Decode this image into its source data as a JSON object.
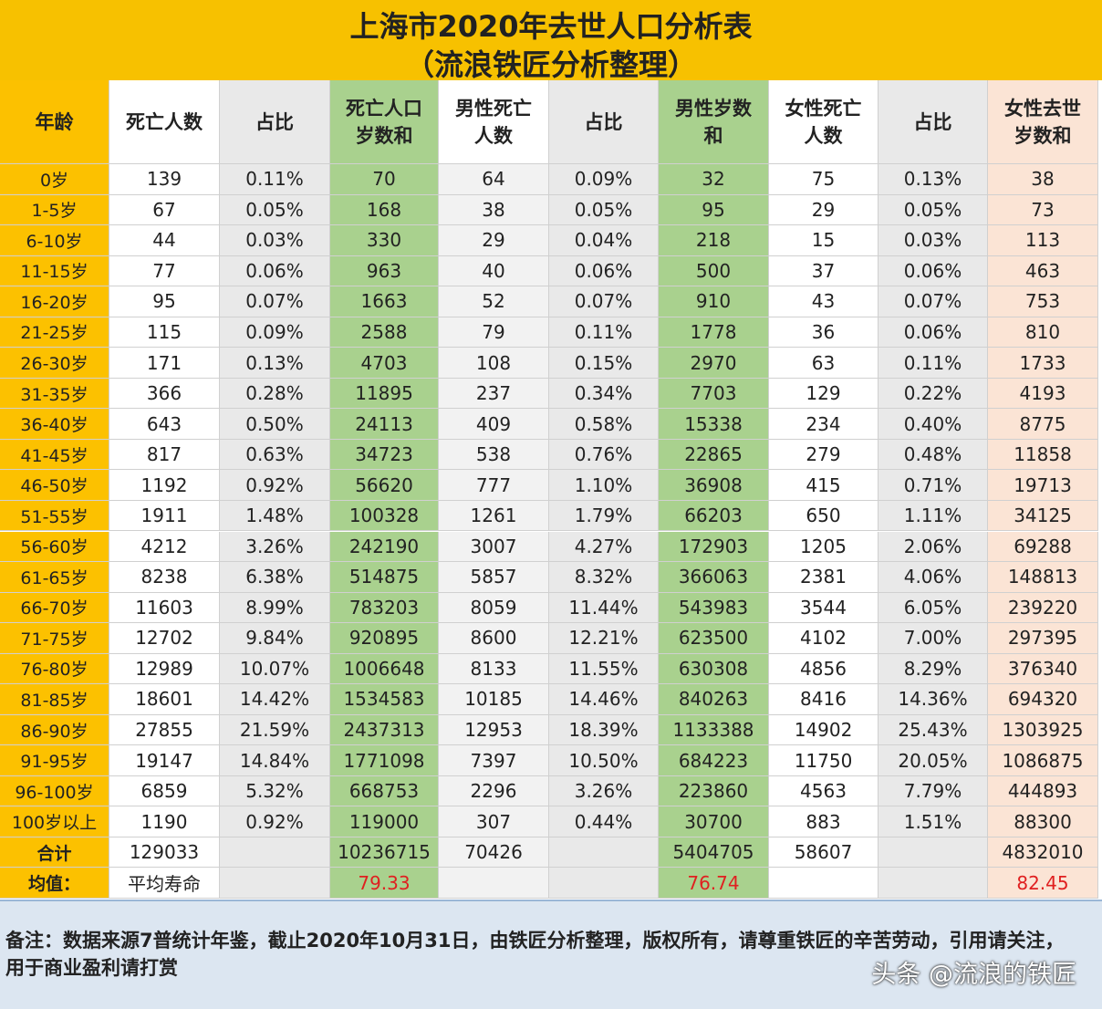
{
  "title": [
    "上海市2020年去世人口分析表",
    "（流浪铁匠分析整理）"
  ],
  "table": {
    "header": [
      [
        "年龄"
      ],
      [
        "死亡人数"
      ],
      [
        "占比"
      ],
      [
        "死亡人口",
        "岁数和"
      ],
      [
        "男性死亡",
        "人数"
      ],
      [
        "占比"
      ],
      [
        "男性岁数",
        "和"
      ],
      [
        "女性死亡",
        "人数"
      ],
      [
        "占比"
      ],
      [
        "女性去世",
        "岁数和"
      ]
    ],
    "rows": [
      [
        "0岁",
        "139",
        "0.11%",
        "70",
        "64",
        "0.09%",
        "32",
        "75",
        "0.13%",
        "38"
      ],
      [
        "1-5岁",
        "67",
        "0.05%",
        "168",
        "38",
        "0.05%",
        "95",
        "29",
        "0.05%",
        "73"
      ],
      [
        "6-10岁",
        "44",
        "0.03%",
        "330",
        "29",
        "0.04%",
        "218",
        "15",
        "0.03%",
        "113"
      ],
      [
        "11-15岁",
        "77",
        "0.06%",
        "963",
        "40",
        "0.06%",
        "500",
        "37",
        "0.06%",
        "463"
      ],
      [
        "16-20岁",
        "95",
        "0.07%",
        "1663",
        "52",
        "0.07%",
        "910",
        "43",
        "0.07%",
        "753"
      ],
      [
        "21-25岁",
        "115",
        "0.09%",
        "2588",
        "79",
        "0.11%",
        "1778",
        "36",
        "0.06%",
        "810"
      ],
      [
        "26-30岁",
        "171",
        "0.13%",
        "4703",
        "108",
        "0.15%",
        "2970",
        "63",
        "0.11%",
        "1733"
      ],
      [
        "31-35岁",
        "366",
        "0.28%",
        "11895",
        "237",
        "0.34%",
        "7703",
        "129",
        "0.22%",
        "4193"
      ],
      [
        "36-40岁",
        "643",
        "0.50%",
        "24113",
        "409",
        "0.58%",
        "15338",
        "234",
        "0.40%",
        "8775"
      ],
      [
        "41-45岁",
        "817",
        "0.63%",
        "34723",
        "538",
        "0.76%",
        "22865",
        "279",
        "0.48%",
        "11858"
      ],
      [
        "46-50岁",
        "1192",
        "0.92%",
        "56620",
        "777",
        "1.10%",
        "36908",
        "415",
        "0.71%",
        "19713"
      ],
      [
        "51-55岁",
        "1911",
        "1.48%",
        "100328",
        "1261",
        "1.79%",
        "66203",
        "650",
        "1.11%",
        "34125"
      ],
      [
        "56-60岁",
        "4212",
        "3.26%",
        "242190",
        "3007",
        "4.27%",
        "172903",
        "1205",
        "2.06%",
        "69288"
      ],
      [
        "61-65岁",
        "8238",
        "6.38%",
        "514875",
        "5857",
        "8.32%",
        "366063",
        "2381",
        "4.06%",
        "148813"
      ],
      [
        "66-70岁",
        "11603",
        "8.99%",
        "783203",
        "8059",
        "11.44%",
        "543983",
        "3544",
        "6.05%",
        "239220"
      ],
      [
        "71-75岁",
        "12702",
        "9.84%",
        "920895",
        "8600",
        "12.21%",
        "623500",
        "4102",
        "7.00%",
        "297395"
      ],
      [
        "76-80岁",
        "12989",
        "10.07%",
        "1006648",
        "8133",
        "11.55%",
        "630308",
        "4856",
        "8.29%",
        "376340"
      ],
      [
        "81-85岁",
        "18601",
        "14.42%",
        "1534583",
        "10185",
        "14.46%",
        "840263",
        "8416",
        "14.36%",
        "694320"
      ],
      [
        "86-90岁",
        "27855",
        "21.59%",
        "2437313",
        "12953",
        "18.39%",
        "1133388",
        "14902",
        "25.43%",
        "1303925"
      ],
      [
        "91-95岁",
        "19147",
        "14.84%",
        "1771098",
        "7397",
        "10.50%",
        "684223",
        "11750",
        "20.05%",
        "1086875"
      ],
      [
        "96-100岁",
        "6859",
        "5.32%",
        "668753",
        "2296",
        "3.26%",
        "223860",
        "4563",
        "7.79%",
        "444893"
      ],
      [
        "100岁以上",
        "1190",
        "0.92%",
        "119000",
        "307",
        "0.44%",
        "30700",
        "883",
        "1.51%",
        "88300"
      ],
      [
        "合计",
        "129033",
        null,
        "10236715",
        "70426",
        null,
        "5404705",
        "58607",
        null,
        "4832010"
      ],
      [
        "均值：",
        "平均寿命",
        null,
        "79.33",
        null,
        null,
        "76.74",
        null,
        null,
        "82.45"
      ]
    ]
  },
  "note": "备注：数据来源7普统计年鉴，截止2020年10月31日，由铁匠分析整理，版权所有，请尊重铁匠的辛苦劳动，引用请关注，用于商业盈利请打赏",
  "watermark": "头条 @流浪的铁匠"
}
